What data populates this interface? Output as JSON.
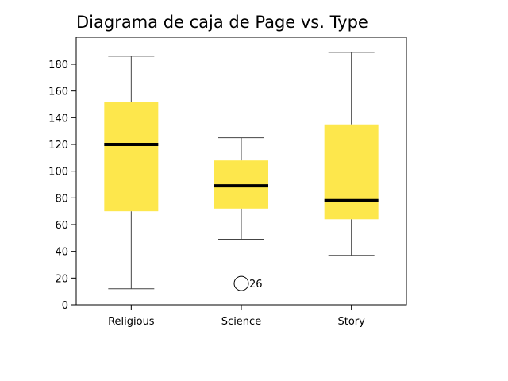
{
  "chart_data": {
    "type": "box",
    "title": "Diagrama de caja de Page vs. Type",
    "xlabel": "",
    "ylabel": "",
    "ylim": [
      0,
      190
    ],
    "yticks": [
      0,
      20,
      40,
      60,
      80,
      100,
      120,
      140,
      160,
      180
    ],
    "grid": false,
    "legend": "none",
    "box_color": "#fde74c",
    "median_color": "#000000",
    "categories": [
      "Religious",
      "Science",
      "Story"
    ],
    "boxes": [
      {
        "category": "Religious",
        "whisker_low": 12,
        "q1": 70,
        "median": 120,
        "q3": 152,
        "whisker_high": 186,
        "outliers": []
      },
      {
        "category": "Science",
        "whisker_low": 49,
        "q1": 72,
        "median": 89,
        "q3": 108,
        "whisker_high": 125,
        "outliers": [
          {
            "value": 16,
            "label": "26"
          }
        ]
      },
      {
        "category": "Story",
        "whisker_low": 37,
        "q1": 64,
        "median": 78,
        "q3": 135,
        "whisker_high": 189,
        "outliers": []
      }
    ]
  }
}
